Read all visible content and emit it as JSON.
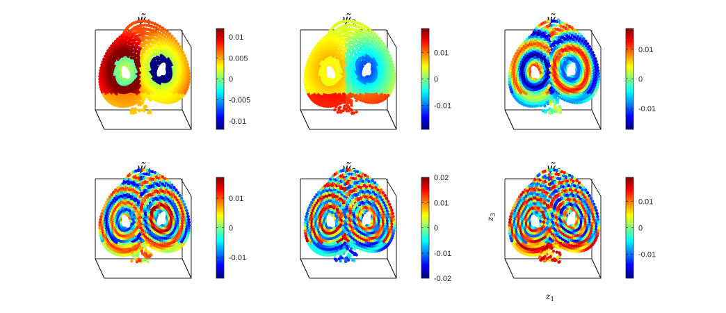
{
  "figure": {
    "xlabel": {
      "var": "z",
      "sub": "1"
    },
    "ylabel": {
      "var": "z",
      "sub": "3"
    }
  },
  "chart_data": [
    {
      "type": "scatter",
      "title": {
        "sym": "ψ̃",
        "sub": "1"
      },
      "colormap": "jet",
      "clim": [
        -0.012,
        0.012
      ],
      "ticks": [
        -0.01,
        -0.005,
        0,
        0.005,
        0.01
      ],
      "tick_labels": [
        "-0.01",
        "-0.005",
        "0",
        "0.005",
        "0.01"
      ],
      "pattern": {
        "freq": 0,
        "left": 1.0,
        "right": -1.0,
        "inner": -1.0,
        "outer": 1.0,
        "bottom": 0.2
      }
    },
    {
      "type": "scatter",
      "title": {
        "sym": "ψ̃",
        "sub": "2"
      },
      "colormap": "jet",
      "clim": [
        -0.019,
        0.019
      ],
      "ticks": [
        -0.01,
        0,
        0.01
      ],
      "tick_labels": [
        "-0.01",
        "0",
        "0.01"
      ],
      "pattern": {
        "freq": 0,
        "left": 0.4,
        "right": -0.9,
        "inner": 0.0,
        "outer": 0.3,
        "bottom": 1.0
      }
    },
    {
      "type": "scatter",
      "title": {
        "sym": "ψ̃",
        "sub": "3"
      },
      "colormap": "jet",
      "clim": [
        -0.017,
        0.017
      ],
      "ticks": [
        -0.01,
        0,
        0.01
      ],
      "tick_labels": [
        "-0.01",
        "0",
        "0.01"
      ],
      "pattern": {
        "freq": 1.4,
        "left": -0.9,
        "right": 0.6,
        "inner": 0.3,
        "outer": -0.6,
        "bottom": -0.2
      }
    },
    {
      "type": "scatter",
      "title": {
        "sym": "ψ̃",
        "sub": "4"
      },
      "colormap": "jet",
      "clim": [
        -0.017,
        0.017
      ],
      "ticks": [
        -0.01,
        0,
        0.01
      ],
      "tick_labels": [
        "-0.01",
        "0",
        "0.01"
      ],
      "pattern": {
        "freq": 2.2,
        "left": -0.5,
        "right": 0.7,
        "inner": 0.8,
        "outer": -0.3,
        "bottom": 0.6
      }
    },
    {
      "type": "scatter",
      "title": {
        "sym": "ψ̃",
        "sub": "5"
      },
      "colormap": "jet",
      "clim": [
        -0.02,
        0.02
      ],
      "ticks": [
        -0.02,
        -0.01,
        0,
        0.01,
        0.02
      ],
      "tick_labels": [
        "-0.02",
        "-0.01",
        "0",
        "0.01",
        "0.02"
      ],
      "pattern": {
        "freq": 2.8,
        "left": 0.6,
        "right": -0.7,
        "inner": 0.5,
        "outer": 0.7,
        "bottom": -0.8
      }
    },
    {
      "type": "scatter",
      "title": {
        "sym": "ψ̃",
        "sub": "6"
      },
      "colormap": "jet",
      "clim": [
        -0.019,
        0.019
      ],
      "ticks": [
        -0.01,
        0,
        0.01
      ],
      "tick_labels": [
        "-0.01",
        "0",
        "0.01"
      ],
      "pattern": {
        "freq": 3.2,
        "left": 0.9,
        "right": -0.6,
        "inner": -0.2,
        "outer": 0.4,
        "bottom": 0.9
      }
    }
  ]
}
